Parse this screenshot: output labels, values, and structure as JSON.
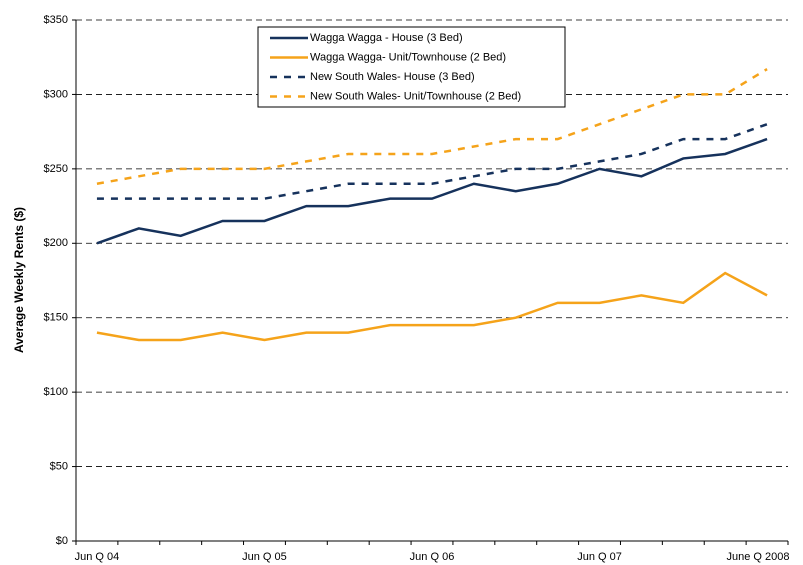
{
  "chart_data": {
    "type": "line",
    "y_label": "Average Weekly Rents ($)",
    "categories": [
      "Jun Q 04",
      null,
      null,
      null,
      "Jun Q 05",
      null,
      null,
      null,
      "Jun Q 06",
      null,
      null,
      null,
      "Jun Q 07",
      null,
      null,
      null,
      "June Q 2008"
    ],
    "series": [
      {
        "name": "Wagga Wagga - House (3 Bed)",
        "color": "#16325c",
        "dash": false,
        "values": [
          200,
          210,
          205,
          215,
          215,
          225,
          225,
          230,
          230,
          240,
          235,
          240,
          250,
          245,
          257,
          260,
          270
        ]
      },
      {
        "name": "Wagga Wagga- Unit/Townhouse (2 Bed)",
        "color": "#f5a31a",
        "dash": false,
        "values": [
          140,
          135,
          135,
          140,
          135,
          140,
          140,
          145,
          145,
          145,
          150,
          160,
          160,
          165,
          160,
          180,
          165
        ]
      },
      {
        "name": "New South Wales- House (3 Bed)",
        "color": "#16325c",
        "dash": true,
        "values": [
          230,
          230,
          230,
          230,
          230,
          235,
          240,
          240,
          240,
          245,
          250,
          250,
          255,
          260,
          270,
          270,
          280
        ]
      },
      {
        "name": "New South Wales- Unit/Townhouse (2 Bed)",
        "color": "#f5a31a",
        "dash": true,
        "values": [
          240,
          245,
          250,
          250,
          250,
          255,
          260,
          260,
          260,
          265,
          270,
          270,
          280,
          290,
          300,
          300,
          317
        ]
      }
    ],
    "ylim": [
      0,
      350
    ],
    "yticks": [
      {
        "value": 0,
        "label": "$0"
      },
      {
        "value": 50,
        "label": "$50"
      },
      {
        "value": 100,
        "label": "$100"
      },
      {
        "value": 150,
        "label": "$150"
      },
      {
        "value": 200,
        "label": "$200"
      },
      {
        "value": 250,
        "label": "$250"
      },
      {
        "value": 300,
        "label": "$300"
      },
      {
        "value": 350,
        "label": "$350"
      }
    ],
    "grid": true,
    "legend": "top"
  }
}
